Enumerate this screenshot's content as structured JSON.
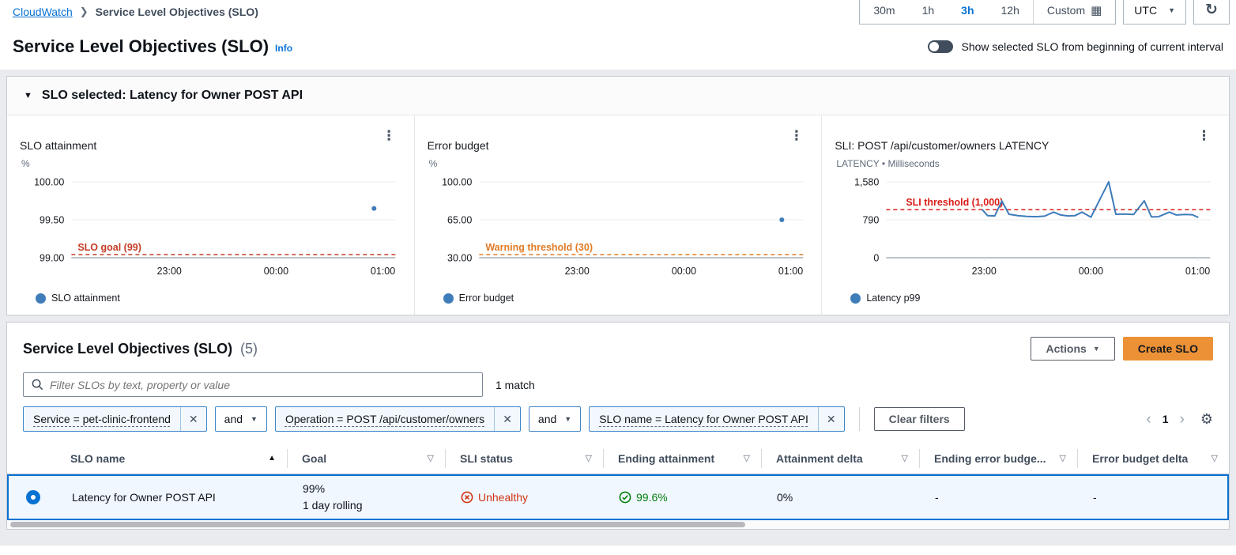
{
  "topbar": {
    "breadcrumb": {
      "root": "CloudWatch",
      "current": "Service Level Objectives (SLO)"
    },
    "ranges": [
      {
        "label": "30m"
      },
      {
        "label": "1h"
      },
      {
        "label": "3h"
      },
      {
        "label": "12h"
      }
    ],
    "selected_range": "3h",
    "custom_label": "Custom",
    "timezone": "UTC"
  },
  "page": {
    "title": "Service Level Objectives (SLO)",
    "info_label": "Info",
    "toggle_label": "Show selected SLO from beginning of current interval"
  },
  "slo_panel": {
    "header": "SLO selected: Latency for Owner POST API"
  },
  "chart_data": [
    {
      "type": "scatter",
      "title": "SLO attainment",
      "ylabel": "%",
      "ylim": [
        99.0,
        100.0
      ],
      "y_ticks": [
        {
          "label": "100.00",
          "value": 100.0
        },
        {
          "label": "99.50",
          "value": 99.5
        },
        {
          "label": "99.00",
          "value": 99.0
        }
      ],
      "x_ticks": [
        {
          "label": "23:00",
          "minute": 60
        },
        {
          "label": "00:00",
          "minute": 120
        },
        {
          "label": "01:00",
          "minute": 180
        }
      ],
      "xlim_minutes": [
        5,
        187
      ],
      "threshold": {
        "label": "SLO goal (99)",
        "value": 99.0,
        "color": "#c33d26"
      },
      "series": [
        {
          "name": "SLO attainment",
          "color": "#3f7cba",
          "points": [
            [
              175,
              99.65
            ]
          ]
        }
      ]
    },
    {
      "type": "scatter",
      "title": "Error budget",
      "ylabel": "%",
      "ylim": [
        30,
        100
      ],
      "y_ticks": [
        {
          "label": "100.00",
          "value": 100
        },
        {
          "label": "65.00",
          "value": 65
        },
        {
          "label": "30.00",
          "value": 30
        }
      ],
      "x_ticks": [
        {
          "label": "23:00",
          "minute": 60
        },
        {
          "label": "00:00",
          "minute": 120
        },
        {
          "label": "01:00",
          "minute": 180
        }
      ],
      "xlim_minutes": [
        5,
        187
      ],
      "threshold": {
        "label": "Warning threshold (30)",
        "value": 30,
        "color": "#e07b27"
      },
      "series": [
        {
          "name": "Error budget",
          "color": "#3f7cba",
          "points": [
            [
              175,
              65
            ]
          ]
        }
      ]
    },
    {
      "type": "line",
      "title": "SLI: POST /api/customer/owners LATENCY",
      "ylabel": "LATENCY • Milliseconds",
      "ylim": [
        0,
        1580
      ],
      "y_ticks": [
        {
          "label": "1,580",
          "value": 1580
        },
        {
          "label": "790",
          "value": 790
        },
        {
          "label": "0",
          "value": 0
        }
      ],
      "x_ticks": [
        {
          "label": "23:00",
          "minute": 60
        },
        {
          "label": "00:00",
          "minute": 120
        },
        {
          "label": "01:00",
          "minute": 180
        }
      ],
      "xlim_minutes": [
        5,
        187
      ],
      "threshold": {
        "label": "SLI threshold (1,000)",
        "value": 1000,
        "color": "#d91e18"
      },
      "series": [
        {
          "name": "Latency p99",
          "color": "#3f7cba",
          "points": [
            [
              59,
              1000
            ],
            [
              62,
              875
            ],
            [
              66,
              870
            ],
            [
              70,
              1180
            ],
            [
              74,
              905
            ],
            [
              79,
              875
            ],
            [
              84,
              860
            ],
            [
              89,
              855
            ],
            [
              94,
              865
            ],
            [
              99,
              950
            ],
            [
              103,
              890
            ],
            [
              107,
              870
            ],
            [
              111,
              875
            ],
            [
              115,
              950
            ],
            [
              120,
              845
            ],
            [
              130,
              1580
            ],
            [
              134,
              905
            ],
            [
              139,
              910
            ],
            [
              144,
              900
            ],
            [
              150,
              1185
            ],
            [
              154,
              850
            ],
            [
              158,
              855
            ],
            [
              164,
              950
            ],
            [
              168,
              890
            ],
            [
              173,
              900
            ],
            [
              177,
              895
            ],
            [
              180,
              845
            ]
          ]
        }
      ]
    }
  ],
  "table_section": {
    "title": "Service Level Objectives (SLO)",
    "count": "(5)",
    "actions_label": "Actions",
    "create_label": "Create SLO",
    "filter_placeholder": "Filter SLOs by text, property or value",
    "match_text": "1 match",
    "join_label": "and",
    "filters": [
      {
        "text": "Service = pet-clinic-frontend"
      },
      {
        "text": "Operation = POST /api/customer/owners"
      },
      {
        "text": "SLO name = Latency for Owner POST API"
      }
    ],
    "clear_filters_label": "Clear filters",
    "page_number": "1",
    "columns": [
      {
        "label": "SLO name"
      },
      {
        "label": "Goal"
      },
      {
        "label": "SLI status"
      },
      {
        "label": "Ending attainment"
      },
      {
        "label": "Attainment delta"
      },
      {
        "label": "Ending error budge..."
      },
      {
        "label": "Error budget delta"
      }
    ],
    "rows": [
      {
        "slo_name": "Latency for Owner POST API",
        "goal_line1": "99%",
        "goal_line2": "1 day rolling",
        "sli_status": "Unhealthy",
        "ending_attainment": "99.6%",
        "attainment_delta": "0%",
        "ending_error_budget": "-",
        "error_budget_delta": "-"
      }
    ]
  }
}
